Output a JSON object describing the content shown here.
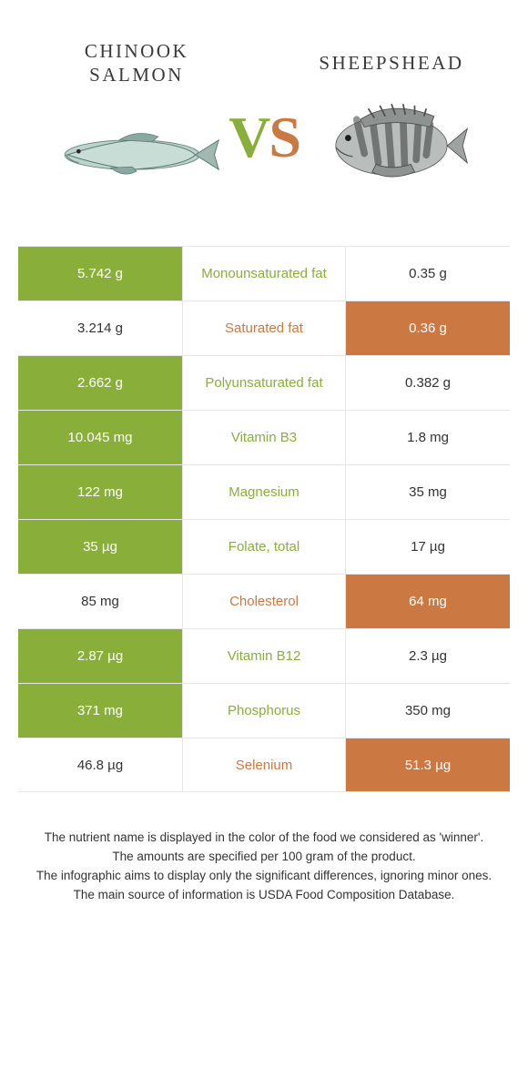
{
  "header": {
    "food_a": "Chinook salmon",
    "food_b": "Sheepshead",
    "vs_v": "V",
    "vs_s": "S"
  },
  "colors": {
    "green": "#8aae3a",
    "orange": "#cc7842",
    "border": "#e7e7e7",
    "bg": "#ffffff",
    "text": "#333333"
  },
  "rows": [
    {
      "left": "5.742 g",
      "label": "Monounsaturated fat",
      "right": "0.35 g",
      "winner": "left"
    },
    {
      "left": "3.214 g",
      "label": "Saturated fat",
      "right": "0.36 g",
      "winner": "right"
    },
    {
      "left": "2.662 g",
      "label": "Polyunsaturated fat",
      "right": "0.382 g",
      "winner": "left"
    },
    {
      "left": "10.045 mg",
      "label": "Vitamin B3",
      "right": "1.8 mg",
      "winner": "left"
    },
    {
      "left": "122 mg",
      "label": "Magnesium",
      "right": "35 mg",
      "winner": "left"
    },
    {
      "left": "35 µg",
      "label": "Folate, total",
      "right": "17 µg",
      "winner": "left"
    },
    {
      "left": "85 mg",
      "label": "Cholesterol",
      "right": "64 mg",
      "winner": "right"
    },
    {
      "left": "2.87 µg",
      "label": "Vitamin B12",
      "right": "2.3 µg",
      "winner": "left"
    },
    {
      "left": "371 mg",
      "label": "Phosphorus",
      "right": "350 mg",
      "winner": "left"
    },
    {
      "left": "46.8 µg",
      "label": "Selenium",
      "right": "51.3 µg",
      "winner": "right"
    }
  ],
  "footnotes": [
    "The nutrient name is displayed in the color of the food we considered as 'winner'.",
    "The amounts are specified per 100 gram of the product.",
    "The infographic aims to display only the significant differences, ignoring minor ones.",
    "The main source of information is USDA Food Composition Database."
  ]
}
